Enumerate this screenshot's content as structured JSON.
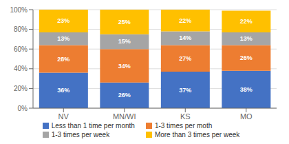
{
  "chart_data": {
    "type": "bar",
    "stacked": true,
    "grid": true,
    "data_labels": true,
    "legend": "bottom",
    "categories": [
      "NV",
      "MN/WI",
      "KS",
      "MO"
    ],
    "series": [
      {
        "name": "Less than 1 time per month",
        "color": "#4472C4",
        "values": [
          36,
          26,
          37,
          38
        ],
        "value_labels": [
          "36%",
          "26%",
          "37%",
          "38%"
        ]
      },
      {
        "name": "1-3 times per moth",
        "color": "#ED7D31",
        "values": [
          28,
          34,
          27,
          26
        ],
        "value_labels": [
          "28%",
          "34%",
          "27%",
          "26%"
        ]
      },
      {
        "name": "1-3 times per week",
        "color": "#A5A5A5",
        "values": [
          13,
          15,
          14,
          13
        ],
        "value_labels": [
          "13%",
          "15%",
          "14%",
          "13%"
        ]
      },
      {
        "name": "More than 3 times per week",
        "color": "#FFC000",
        "values": [
          23,
          25,
          22,
          22
        ],
        "value_labels": [
          "23%",
          "25%",
          "22%",
          "22%"
        ]
      }
    ],
    "ylim": [
      0,
      100
    ],
    "yticks": [
      {
        "value": 0,
        "label": "0%"
      },
      {
        "value": 20,
        "label": "20%"
      },
      {
        "value": 40,
        "label": "40%"
      },
      {
        "value": 60,
        "label": "60%"
      },
      {
        "value": 80,
        "label": "80%"
      },
      {
        "value": 100,
        "label": "100%"
      }
    ]
  }
}
